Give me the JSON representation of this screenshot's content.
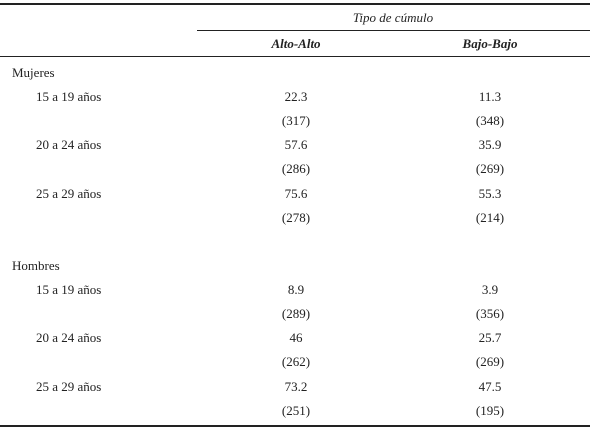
{
  "header": {
    "title": "Tipo de cúmulo",
    "columns": [
      "Alto-Alto",
      "Bajo-Bajo"
    ]
  },
  "groups": [
    {
      "label": "Mujeres",
      "rows": [
        {
          "label": "15 a 19 años",
          "values": [
            "22.3",
            "11.3"
          ],
          "counts": [
            "(317)",
            "(348)"
          ]
        },
        {
          "label": "20 a 24 años",
          "values": [
            "57.6",
            "35.9"
          ],
          "counts": [
            "(286)",
            "(269)"
          ]
        },
        {
          "label": "25 a 29 años",
          "values": [
            "75.6",
            "55.3"
          ],
          "counts": [
            "(278)",
            "(214)"
          ]
        }
      ]
    },
    {
      "label": "Hombres",
      "rows": [
        {
          "label": "15 a 19 años",
          "values": [
            "8.9",
            "3.9"
          ],
          "counts": [
            "(289)",
            "(356)"
          ]
        },
        {
          "label": "20 a 24 años",
          "values": [
            "46",
            "25.7"
          ],
          "counts": [
            "(262)",
            "(269)"
          ]
        },
        {
          "label": "25 a 29 años",
          "values": [
            "73.2",
            "47.5"
          ],
          "counts": [
            "(251)",
            "(195)"
          ]
        }
      ]
    }
  ]
}
